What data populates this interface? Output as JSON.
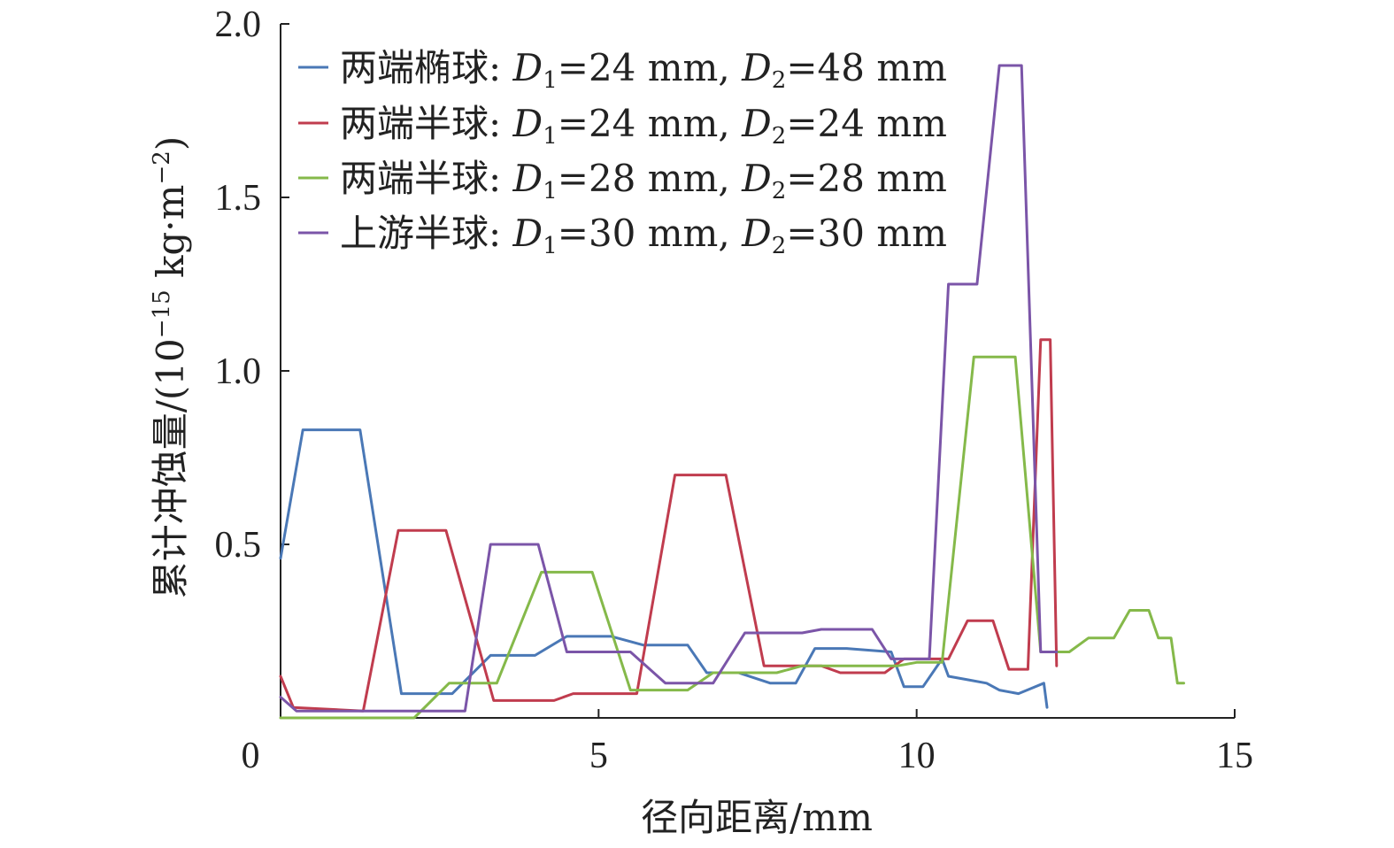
{
  "chart_data": {
    "type": "line",
    "xlabel": "径向距离/mm",
    "ylabel_parts": {
      "prefix": "累计冲蚀量/(10",
      "exp": "−15",
      "mid": " kg·m",
      "exp2": "−2",
      "suffix": ")"
    },
    "xlim": [
      0,
      15
    ],
    "ylim": [
      0,
      2.0
    ],
    "x_ticks": [
      0,
      5,
      10,
      15
    ],
    "y_ticks": [
      0.5,
      1.0,
      1.5,
      2.0
    ],
    "x_tick_labels": [
      "0",
      "5",
      "10",
      "15"
    ],
    "y_tick_labels": [
      "0.5",
      "1.0",
      "1.5",
      "2.0"
    ],
    "legend_position": "top-left",
    "grid": false,
    "series": [
      {
        "label": {
          "prefix": "两端椭球: ",
          "d1": "D",
          "s1": "1",
          "v1": "=24 mm, ",
          "d2": "D",
          "s2": "2",
          "v2": "=48 mm"
        },
        "color": "#4a78b6",
        "points": [
          [
            0,
            0.46
          ],
          [
            0.35,
            0.83
          ],
          [
            1.25,
            0.83
          ],
          [
            1.9,
            0.07
          ],
          [
            2.7,
            0.07
          ],
          [
            3.3,
            0.18
          ],
          [
            4.0,
            0.18
          ],
          [
            4.5,
            0.235
          ],
          [
            5.2,
            0.235
          ],
          [
            5.7,
            0.21
          ],
          [
            6.4,
            0.21
          ],
          [
            6.7,
            0.13
          ],
          [
            7.2,
            0.13
          ],
          [
            7.7,
            0.1
          ],
          [
            8.1,
            0.1
          ],
          [
            8.4,
            0.2
          ],
          [
            8.9,
            0.2
          ],
          [
            9.6,
            0.19
          ],
          [
            9.8,
            0.09
          ],
          [
            10.1,
            0.09
          ],
          [
            10.4,
            0.17
          ],
          [
            10.5,
            0.12
          ],
          [
            10.8,
            0.11
          ],
          [
            11.1,
            0.1
          ],
          [
            11.3,
            0.08
          ],
          [
            11.6,
            0.07
          ],
          [
            11.8,
            0.085
          ],
          [
            12.0,
            0.1
          ],
          [
            12.05,
            0.03
          ]
        ]
      },
      {
        "label": {
          "prefix": "两端半球: ",
          "d1": "D",
          "s1": "1",
          "v1": "=24 mm, ",
          "d2": "D",
          "s2": "2",
          "v2": "=24 mm"
        },
        "color": "#c03c4e",
        "points": [
          [
            0,
            0.12
          ],
          [
            0.2,
            0.03
          ],
          [
            1.3,
            0.02
          ],
          [
            1.85,
            0.54
          ],
          [
            2.6,
            0.54
          ],
          [
            3.35,
            0.05
          ],
          [
            4.3,
            0.05
          ],
          [
            4.6,
            0.07
          ],
          [
            5.6,
            0.07
          ],
          [
            6.2,
            0.7
          ],
          [
            7.0,
            0.7
          ],
          [
            7.6,
            0.15
          ],
          [
            8.5,
            0.15
          ],
          [
            8.8,
            0.13
          ],
          [
            9.5,
            0.13
          ],
          [
            9.8,
            0.17
          ],
          [
            10.5,
            0.17
          ],
          [
            10.8,
            0.28
          ],
          [
            11.2,
            0.28
          ],
          [
            11.45,
            0.14
          ],
          [
            11.75,
            0.14
          ],
          [
            11.95,
            1.09
          ],
          [
            12.1,
            1.09
          ],
          [
            12.2,
            0.15
          ]
        ]
      },
      {
        "label": {
          "prefix": "两端半球: ",
          "d1": "D",
          "s1": "1",
          "v1": "=28 mm, ",
          "d2": "D",
          "s2": "2",
          "v2": "=28 mm"
        },
        "color": "#85b94a",
        "points": [
          [
            0,
            0.0
          ],
          [
            2.1,
            0.0
          ],
          [
            2.65,
            0.1
          ],
          [
            3.4,
            0.1
          ],
          [
            4.1,
            0.42
          ],
          [
            4.9,
            0.42
          ],
          [
            5.5,
            0.08
          ],
          [
            6.4,
            0.08
          ],
          [
            6.8,
            0.13
          ],
          [
            7.8,
            0.13
          ],
          [
            8.2,
            0.15
          ],
          [
            9.7,
            0.15
          ],
          [
            10.0,
            0.16
          ],
          [
            10.4,
            0.16
          ],
          [
            10.9,
            1.04
          ],
          [
            11.55,
            1.04
          ],
          [
            11.95,
            0.19
          ],
          [
            12.4,
            0.19
          ],
          [
            12.7,
            0.23
          ],
          [
            13.1,
            0.23
          ],
          [
            13.35,
            0.31
          ],
          [
            13.65,
            0.31
          ],
          [
            13.8,
            0.23
          ],
          [
            14.0,
            0.23
          ],
          [
            14.1,
            0.1
          ],
          [
            14.2,
            0.1
          ]
        ]
      },
      {
        "label": {
          "prefix": "上游半球: ",
          "d1": "D",
          "s1": "1",
          "v1": "=30 mm, ",
          "d2": "D",
          "s2": "2",
          "v2": "=30 mm"
        },
        "color": "#7b55a8",
        "points": [
          [
            0,
            0.06
          ],
          [
            0.25,
            0.02
          ],
          [
            2.9,
            0.02
          ],
          [
            3.3,
            0.5
          ],
          [
            4.05,
            0.5
          ],
          [
            4.5,
            0.19
          ],
          [
            5.5,
            0.19
          ],
          [
            6.05,
            0.1
          ],
          [
            6.8,
            0.1
          ],
          [
            7.3,
            0.245
          ],
          [
            8.2,
            0.245
          ],
          [
            8.5,
            0.255
          ],
          [
            9.3,
            0.255
          ],
          [
            9.6,
            0.17
          ],
          [
            10.2,
            0.17
          ],
          [
            10.5,
            1.25
          ],
          [
            10.95,
            1.25
          ],
          [
            11.3,
            1.88
          ],
          [
            11.65,
            1.88
          ],
          [
            11.95,
            0.19
          ],
          [
            12.2,
            0.19
          ]
        ]
      }
    ]
  }
}
